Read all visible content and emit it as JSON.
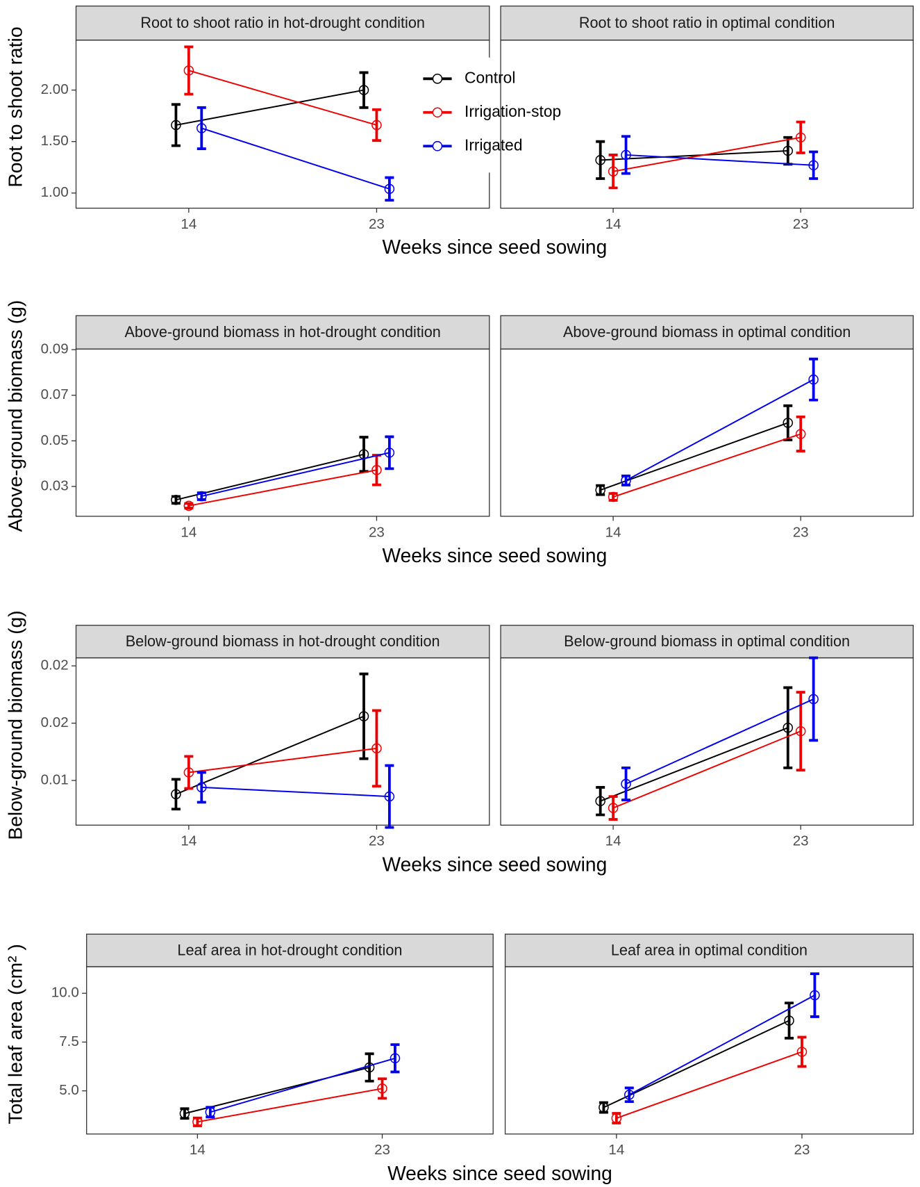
{
  "chart_data": [
    {
      "type": "line",
      "title": "Root to shoot ratio in hot-drought condition",
      "xlabel": "Weeks since seed sowing",
      "ylabel": "Root to shoot ratio",
      "x": [
        14,
        23
      ],
      "xlim": [
        8.6,
        28.4
      ],
      "xticks": [
        14,
        23
      ],
      "ylim": [
        0.853,
        2.485
      ],
      "yticks": [
        {
          "value": 1,
          "label": "1.00"
        },
        {
          "value": 1.5,
          "label": "1.50"
        },
        {
          "value": 2,
          "label": "2.00"
        }
      ],
      "legend": "inside top right",
      "series": [
        {
          "name": "Control",
          "color": "#000000",
          "values": [
            1.66,
            2.0
          ],
          "errors": [
            0.2,
            0.17
          ]
        },
        {
          "name": "Irrigation-stop",
          "color": "#ee0000",
          "values": [
            2.19,
            1.66
          ],
          "errors": [
            0.23,
            0.15
          ]
        },
        {
          "name": "Irrigated",
          "color": "#0000ee",
          "values": [
            1.63,
            1.04
          ],
          "errors": [
            0.2,
            0.11
          ]
        }
      ]
    },
    {
      "type": "line",
      "title": "Root to shoot ratio in optimal condition",
      "x": [
        14,
        23
      ],
      "xlim": [
        8.6,
        28.4
      ],
      "xticks": [
        14,
        23
      ],
      "ylim": [
        0.853,
        2.485
      ],
      "series": [
        {
          "name": "Control",
          "color": "#000000",
          "values": [
            1.32,
            1.41
          ],
          "errors": [
            0.18,
            0.13
          ]
        },
        {
          "name": "Irrigation-stop",
          "color": "#ee0000",
          "values": [
            1.21,
            1.54
          ],
          "errors": [
            0.16,
            0.15
          ]
        },
        {
          "name": "Irrigated",
          "color": "#0000ee",
          "values": [
            1.37,
            1.27
          ],
          "errors": [
            0.18,
            0.13
          ]
        }
      ]
    },
    {
      "type": "line",
      "title": "Above-ground biomass in hot-drought condition",
      "xlabel": "Weeks since seed sowing",
      "ylabel": "Above-ground biomass (g)",
      "x": [
        14,
        23
      ],
      "xlim": [
        8.6,
        28.4
      ],
      "xticks": [
        14,
        23
      ],
      "ylim": [
        0.0169,
        0.0903
      ],
      "yticks": [
        0.03,
        0.05,
        0.07,
        0.09
      ],
      "series": [
        {
          "name": "Control",
          "color": "#000000",
          "values": [
            0.0241,
            0.0441
          ],
          "errors": [
            0.0015,
            0.0075
          ]
        },
        {
          "name": "Irrigation-stop",
          "color": "#ee0000",
          "values": [
            0.0215,
            0.0372
          ],
          "errors": [
            0.001,
            0.0065
          ]
        },
        {
          "name": "Irrigated",
          "color": "#0000ee",
          "values": [
            0.0257,
            0.0448
          ],
          "errors": [
            0.0015,
            0.007
          ]
        }
      ]
    },
    {
      "type": "line",
      "title": "Above-ground biomass in optimal condition",
      "x": [
        14,
        23
      ],
      "xlim": [
        8.6,
        28.4
      ],
      "xticks": [
        14,
        23
      ],
      "ylim": [
        0.0169,
        0.0903
      ],
      "series": [
        {
          "name": "Control",
          "color": "#000000",
          "values": [
            0.0284,
            0.0579
          ],
          "errors": [
            0.002,
            0.0075
          ]
        },
        {
          "name": "Irrigation-stop",
          "color": "#ee0000",
          "values": [
            0.0254,
            0.053
          ],
          "errors": [
            0.0015,
            0.0075
          ]
        },
        {
          "name": "Irrigated",
          "color": "#0000ee",
          "values": [
            0.0326,
            0.0769
          ],
          "errors": [
            0.002,
            0.009
          ]
        }
      ]
    },
    {
      "type": "line",
      "title": "Below-ground biomass in hot-drought condition",
      "xlabel": "Weeks since seed sowing",
      "ylabel": "Below-ground biomass (g)",
      "x": [
        14,
        23
      ],
      "xlim": [
        8.6,
        28.4
      ],
      "xticks": [
        14,
        23
      ],
      "ylim": [
        0.0061,
        0.0207
      ],
      "yticks": [
        0.01,
        {
          "value": 0.015,
          "label": "0.02"
        },
        0.02
      ],
      "series": [
        {
          "name": "Control",
          "color": "#000000",
          "values": [
            0.0088,
            0.0156
          ],
          "errors": [
            0.0013,
            0.0037
          ]
        },
        {
          "name": "Irrigation-stop",
          "color": "#ee0000",
          "values": [
            0.0107,
            0.0128
          ],
          "errors": [
            0.0014,
            0.0033
          ]
        },
        {
          "name": "Irrigated",
          "color": "#0000ee",
          "values": [
            0.0094,
            0.0086
          ],
          "errors": [
            0.0013,
            0.0027
          ]
        }
      ]
    },
    {
      "type": "line",
      "title": "Below-ground biomass in optimal condition",
      "x": [
        14,
        23
      ],
      "xlim": [
        8.6,
        28.4
      ],
      "xticks": [
        14,
        23
      ],
      "ylim": [
        0.0061,
        0.0207
      ],
      "series": [
        {
          "name": "Control",
          "color": "#000000",
          "values": [
            0.0082,
            0.0146
          ],
          "errors": [
            0.0012,
            0.0035
          ]
        },
        {
          "name": "Irrigation-stop",
          "color": "#ee0000",
          "values": [
            0.0076,
            0.0143
          ],
          "errors": [
            0.001,
            0.0034
          ]
        },
        {
          "name": "Irrigated",
          "color": "#0000ee",
          "values": [
            0.0097,
            0.0171
          ],
          "errors": [
            0.0014,
            0.0036
          ]
        }
      ]
    },
    {
      "type": "line",
      "title": "Leaf area in hot-drought condition",
      "xlabel": "Weeks since seed sowing",
      "ylabel": "Total leaf area (cm² )",
      "x": [
        14,
        23
      ],
      "xlim": [
        8.6,
        28.4
      ],
      "xticks": [
        14,
        23
      ],
      "ylim": [
        2.79,
        11.36
      ],
      "yticks": [
        {
          "value": 5,
          "label": "5.0"
        },
        7.5,
        {
          "value": 10,
          "label": "10.0"
        }
      ],
      "series": [
        {
          "name": "Control",
          "color": "#000000",
          "values": [
            3.84,
            6.2
          ],
          "errors": [
            0.25,
            0.7
          ]
        },
        {
          "name": "Irrigation-stop",
          "color": "#ee0000",
          "values": [
            3.41,
            5.12
          ],
          "errors": [
            0.2,
            0.5
          ]
        },
        {
          "name": "Irrigated",
          "color": "#0000ee",
          "values": [
            3.91,
            6.67
          ],
          "errors": [
            0.25,
            0.7
          ]
        }
      ]
    },
    {
      "type": "line",
      "title": "Leaf area in optimal condition",
      "x": [
        14,
        23
      ],
      "xlim": [
        8.6,
        28.4
      ],
      "xticks": [
        14,
        23
      ],
      "ylim": [
        2.79,
        11.36
      ],
      "series": [
        {
          "name": "Control",
          "color": "#000000",
          "values": [
            4.15,
            8.6
          ],
          "errors": [
            0.25,
            0.9
          ]
        },
        {
          "name": "Irrigation-stop",
          "color": "#ee0000",
          "values": [
            3.6,
            7.0
          ],
          "errors": [
            0.25,
            0.75
          ]
        },
        {
          "name": "Irrigated",
          "color": "#0000ee",
          "values": [
            4.8,
            9.9
          ],
          "errors": [
            0.35,
            1.1
          ]
        }
      ]
    }
  ]
}
